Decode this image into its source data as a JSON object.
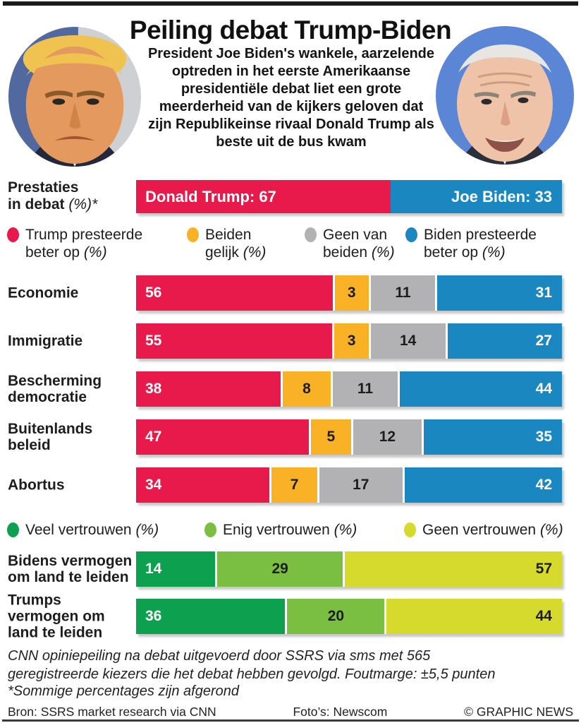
{
  "header": {
    "title": "Peiling debat Trump-Biden",
    "intro": "President Joe Biden's wankele, aarzelende optreden in het eerste Amerikaanse presidentiële debat liet een grote meerderheid van de kijkers geloven dat zijn Republikeinse rivaal Donald Trump als beste uit de bus kwam",
    "portraits": [
      {
        "subject": "Donald Trump"
      },
      {
        "subject": "Joe Biden"
      }
    ]
  },
  "chart_data": [
    {
      "id": "debate-performance",
      "type": "bar",
      "stacked": true,
      "xlim": [
        0,
        100
      ],
      "title_line1": "Prestaties",
      "title_line2": "in debat",
      "title_suffix": "(%)*",
      "segments": [
        {
          "name": "Donald Trump",
          "label": "Donald Trump: 67",
          "value": 67,
          "color": "#e81a4b",
          "text_color": "#ffffff"
        },
        {
          "name": "Joe Biden",
          "label": "Joe Biden: 33",
          "value": 33,
          "color": "#1b87c1",
          "text_color": "#ffffff"
        }
      ]
    },
    {
      "id": "debate-issues",
      "type": "bar",
      "stacked": true,
      "xlim": [
        0,
        100
      ],
      "legend": [
        {
          "label": "Trump presteerde beter op",
          "suffix": "(%)",
          "color": "#e81a4b"
        },
        {
          "label": "Beiden gelijk",
          "suffix": "(%)",
          "color": "#f9b125"
        },
        {
          "label": "Geen van beiden",
          "suffix": "(%)",
          "color": "#b2b2b4"
        },
        {
          "label": "Biden presteerde beter op",
          "suffix": "(%)",
          "color": "#1b87c1"
        }
      ],
      "categories": [
        "Economie",
        "Immigratie",
        "Bescherming democratie",
        "Buitenlands beleid",
        "Abortus"
      ],
      "series": [
        {
          "name": "Trump presteerde beter op",
          "color": "#e81a4b",
          "text_color": "#ffffff",
          "values": [
            56,
            55,
            38,
            47,
            34
          ]
        },
        {
          "name": "Beiden gelijk",
          "color": "#f9b125",
          "text_color": "#1d1d1f",
          "values": [
            3,
            3,
            8,
            5,
            7
          ]
        },
        {
          "name": "Geen van beiden",
          "color": "#b2b2b4",
          "text_color": "#1d1d1f",
          "values": [
            11,
            14,
            11,
            12,
            17
          ]
        },
        {
          "name": "Biden presteerde beter op",
          "color": "#1b87c1",
          "text_color": "#ffffff",
          "values": [
            31,
            27,
            44,
            35,
            42
          ]
        }
      ]
    },
    {
      "id": "leadership-confidence",
      "type": "bar",
      "stacked": true,
      "xlim": [
        0,
        100
      ],
      "legend": [
        {
          "label": "Veel vertrouwen",
          "suffix": "(%)",
          "color": "#0ca04f"
        },
        {
          "label": "Enig vertrouwen",
          "suffix": "(%)",
          "color": "#7abf42"
        },
        {
          "label": "Geen vertrouwen",
          "suffix": "(%)",
          "color": "#d5da2c"
        }
      ],
      "categories": [
        "Bidens vermogen om land te leiden",
        "Trumps vermogen om land te leiden"
      ],
      "series": [
        {
          "name": "Veel vertrouwen",
          "color": "#0ca04f",
          "text_color": "#ffffff",
          "values": [
            14,
            36
          ]
        },
        {
          "name": "Enig vertrouwen",
          "color": "#7abf42",
          "text_color": "#1d1d1f",
          "values": [
            29,
            20
          ]
        },
        {
          "name": "Geen vertrouwen",
          "color": "#d5da2c",
          "text_color": "#1d1d1f",
          "values": [
            57,
            44
          ]
        }
      ]
    }
  ],
  "footer": {
    "note1": "CNN opiniepeiling na debat uitgevoerd door SSRS via sms met 565 geregistreerde kiezers die het debat hebben gevolgd. Foutmarge: ±5,5 punten",
    "note2": "*Sommige percentages zijn afgerond",
    "bron": "Bron: SSRS market research via CNN",
    "fotos": "Foto’s: Newscom",
    "copyright": "© GRAPHIC NEWS"
  }
}
